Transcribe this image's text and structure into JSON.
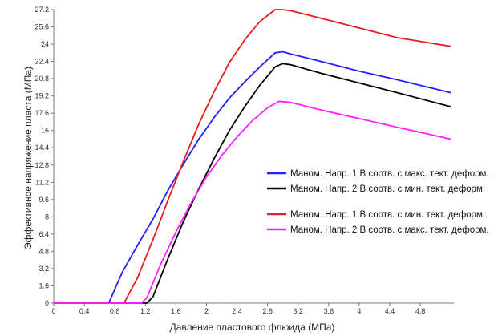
{
  "chart_data": {
    "type": "line",
    "title": "",
    "xlabel": "Давление пластового флюида (МПа)",
    "ylabel": "Эффективное напряжение пласта (МПа)",
    "xlim": [
      0,
      5.24
    ],
    "ylim": [
      0,
      27.2
    ],
    "x_ticks": [
      "0",
      "0.4",
      "0.8",
      "1.2",
      "1.6",
      "2",
      "2.4",
      "2.8",
      "3.2",
      "3.6",
      "4",
      "4.4",
      "4.8"
    ],
    "x_tick_values": [
      0,
      0.4,
      0.8,
      1.2,
      1.6,
      2,
      2.4,
      2.8,
      3.2,
      3.6,
      4,
      4.4,
      4.8
    ],
    "y_ticks": [
      "0",
      "1.6",
      "3.2",
      "4.8",
      "6.4",
      "8",
      "9.6",
      "11.2",
      "12.8",
      "14.4",
      "16",
      "17.6",
      "19.2",
      "20.8",
      "22.4",
      "24",
      "25.6",
      "27.2"
    ],
    "y_tick_values": [
      0,
      1.6,
      3.2,
      4.8,
      6.4,
      8,
      9.6,
      11.2,
      12.8,
      14.4,
      16,
      17.6,
      19.2,
      20.8,
      22.4,
      24,
      25.6,
      27.2
    ],
    "grid": false,
    "legend_position": "right",
    "series": [
      {
        "name": "Маном. Напр. 1 В соотв. с макс. тект. деформ.",
        "color": "#1f1fff",
        "x": [
          0,
          0.72,
          0.9,
          1.1,
          1.3,
          1.5,
          1.7,
          1.9,
          2.1,
          2.3,
          2.5,
          2.7,
          2.9,
          3.0,
          3.1,
          3.5,
          4.0,
          4.5,
          5.2
        ],
        "y": [
          0,
          0,
          2.9,
          5.4,
          7.8,
          10.5,
          12.9,
          15.2,
          17.2,
          19.0,
          20.5,
          21.9,
          23.2,
          23.3,
          23.1,
          22.4,
          21.5,
          20.7,
          19.5
        ]
      },
      {
        "name": "Маном. Напр. 2 В соотв. с мин. тект. деформ.",
        "color": "#000000",
        "x": [
          0,
          1.22,
          1.3,
          1.5,
          1.7,
          1.9,
          2.1,
          2.3,
          2.5,
          2.7,
          2.9,
          3.0,
          3.1,
          3.5,
          4.0,
          4.5,
          5.2
        ],
        "y": [
          0,
          0,
          0.6,
          4.2,
          7.6,
          10.6,
          13.4,
          16.0,
          18.2,
          20.2,
          21.9,
          22.2,
          22.1,
          21.3,
          20.4,
          19.5,
          18.2
        ]
      },
      {
        "name": "Маном. Напр. 1 В соотв. с мин. тект. деформ.",
        "color": "#e81c1c",
        "x": [
          0,
          0.92,
          1.1,
          1.3,
          1.5,
          1.7,
          1.9,
          2.1,
          2.3,
          2.5,
          2.7,
          2.9,
          3.0,
          3.1,
          3.5,
          4.0,
          4.5,
          5.2
        ],
        "y": [
          0,
          0,
          2.4,
          5.9,
          9.6,
          13.2,
          16.6,
          19.6,
          22.3,
          24.4,
          26.1,
          27.2,
          27.2,
          27.1,
          26.4,
          25.5,
          24.6,
          23.8
        ]
      },
      {
        "name": "Маном. Напр. 2 В соотв. с макс. тект. деформ.",
        "color": "#ff1fff",
        "x": [
          0,
          1.15,
          1.22,
          1.4,
          1.6,
          1.8,
          2.0,
          2.2,
          2.4,
          2.6,
          2.8,
          2.95,
          3.1,
          3.5,
          4.0,
          4.5,
          5.2
        ],
        "y": [
          0,
          0,
          0.5,
          3.6,
          6.6,
          9.3,
          11.7,
          13.7,
          15.4,
          16.9,
          18.1,
          18.7,
          18.6,
          17.9,
          17.1,
          16.3,
          15.2
        ]
      }
    ]
  }
}
